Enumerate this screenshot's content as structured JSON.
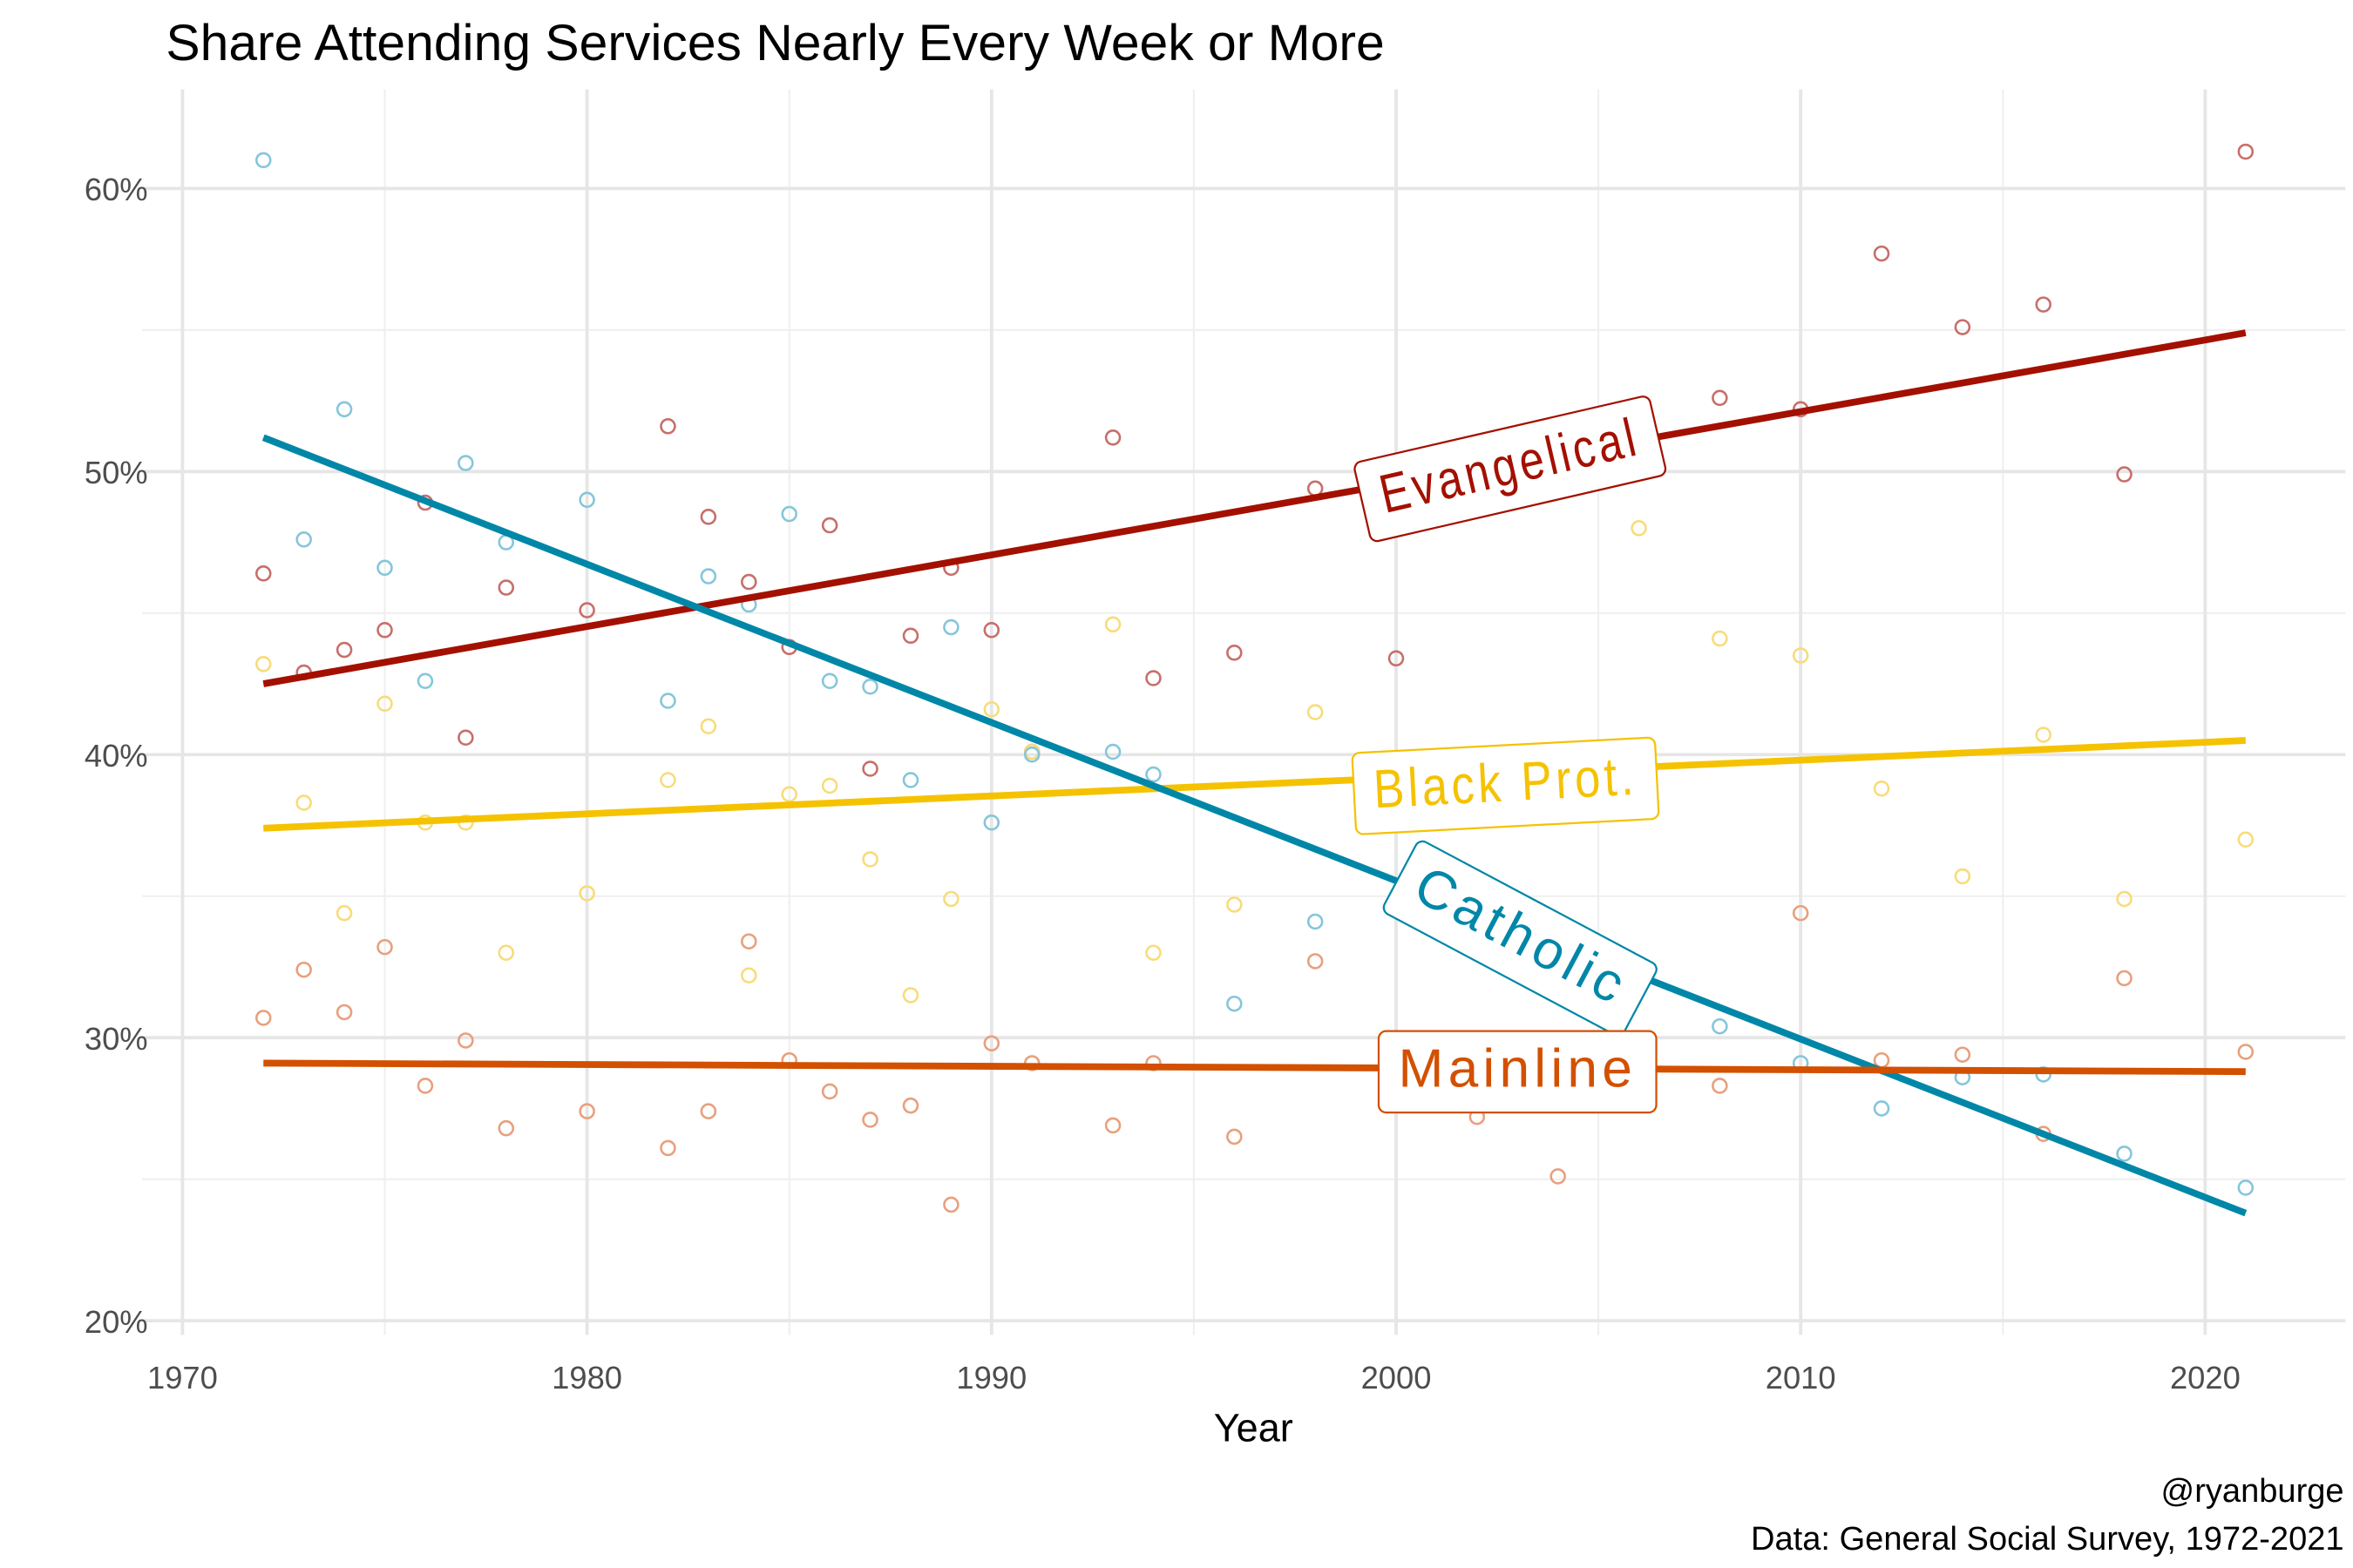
{
  "chart_data": {
    "type": "scatter",
    "title": "Share Attending Services Nearly Every Week or More",
    "xlabel": "Year",
    "ylabel": "",
    "caption_lines": [
      "@ryanburge",
      "Data: General Social Survey, 1972-2021"
    ],
    "xlim": [
      1969,
      2023.5
    ],
    "ylim": [
      19.5,
      63.5
    ],
    "x_ticks": [
      1970,
      1980,
      1990,
      2000,
      2010,
      2020
    ],
    "x_tick_labels": [
      "1970",
      "1980",
      "1990",
      "2000",
      "2010",
      "2020"
    ],
    "y_ticks": [
      20,
      30,
      40,
      50,
      60
    ],
    "y_tick_labels": [
      "20%",
      "30%",
      "40%",
      "50%",
      "60%"
    ],
    "grid": true,
    "legend": "direct labels on lines",
    "series": [
      {
        "name": "Evangelical",
        "color": "#A31000",
        "point_color": "#C76F6A",
        "label_rotation_deg": -13,
        "label_position": {
          "x": 2002.8,
          "y": 50.2
        },
        "trend": {
          "x": [
            1972,
            2021
          ],
          "y": [
            42.5,
            54.9
          ]
        },
        "points": [
          [
            1972,
            46.4
          ],
          [
            1973,
            42.9
          ],
          [
            1974,
            43.7
          ],
          [
            1975,
            44.4
          ],
          [
            1976,
            48.9
          ],
          [
            1977,
            40.6
          ],
          [
            1978,
            45.9
          ],
          [
            1980,
            45.1
          ],
          [
            1982,
            51.6
          ],
          [
            1983,
            48.4
          ],
          [
            1984,
            46.1
          ],
          [
            1985,
            43.8
          ],
          [
            1986,
            48.1
          ],
          [
            1987,
            39.5
          ],
          [
            1988,
            44.2
          ],
          [
            1989,
            46.6
          ],
          [
            1990,
            44.4
          ],
          [
            1991,
            40.1
          ],
          [
            1993,
            51.2
          ],
          [
            1994,
            42.7
          ],
          [
            1996,
            43.6
          ],
          [
            1998,
            49.4
          ],
          [
            2000,
            43.4
          ],
          [
            2008,
            52.6
          ],
          [
            2010,
            52.2
          ],
          [
            2012,
            57.7
          ],
          [
            2014,
            55.1
          ],
          [
            2016,
            55.9
          ],
          [
            2018,
            49.9
          ],
          [
            2021,
            61.3
          ]
        ]
      },
      {
        "name": "Black Prot.",
        "color": "#F5C200",
        "point_color": "#F7DC7A",
        "label_rotation_deg": -3,
        "label_position": {
          "x": 2002.7,
          "y": 39.0
        },
        "trend": {
          "x": [
            1972,
            2021
          ],
          "y": [
            37.4,
            40.5
          ]
        },
        "points": [
          [
            1972,
            43.2
          ],
          [
            1973,
            38.3
          ],
          [
            1974,
            34.4
          ],
          [
            1975,
            41.8
          ],
          [
            1976,
            37.6
          ],
          [
            1977,
            37.6
          ],
          [
            1978,
            33.0
          ],
          [
            1980,
            35.1
          ],
          [
            1982,
            39.1
          ],
          [
            1983,
            41.0
          ],
          [
            1984,
            32.2
          ],
          [
            1985,
            38.6
          ],
          [
            1986,
            38.9
          ],
          [
            1987,
            36.3
          ],
          [
            1988,
            31.5
          ],
          [
            1989,
            34.9
          ],
          [
            1990,
            41.6
          ],
          [
            1991,
            40.1
          ],
          [
            1993,
            44.6
          ],
          [
            1994,
            33.0
          ],
          [
            1996,
            34.7
          ],
          [
            1998,
            41.5
          ],
          [
            2006,
            48.0
          ],
          [
            2008,
            44.1
          ],
          [
            2010,
            43.5
          ],
          [
            2012,
            38.8
          ],
          [
            2014,
            35.7
          ],
          [
            2016,
            40.7
          ],
          [
            2018,
            34.9
          ],
          [
            2021,
            37.0
          ]
        ]
      },
      {
        "name": "Catholic",
        "color": "#0087A8",
        "point_color": "#85C6DB",
        "label_rotation_deg": 28,
        "label_position": {
          "x": 2003.1,
          "y": 33.6
        },
        "trend": {
          "x": [
            1972,
            2021
          ],
          "y": [
            51.2,
            23.8
          ]
        },
        "points": [
          [
            1972,
            61.0
          ],
          [
            1973,
            47.6
          ],
          [
            1974,
            52.2
          ],
          [
            1975,
            46.6
          ],
          [
            1976,
            42.6
          ],
          [
            1977,
            50.3
          ],
          [
            1978,
            47.5
          ],
          [
            1980,
            49.0
          ],
          [
            1982,
            41.9
          ],
          [
            1983,
            46.3
          ],
          [
            1984,
            45.3
          ],
          [
            1985,
            48.5
          ],
          [
            1986,
            42.6
          ],
          [
            1987,
            42.4
          ],
          [
            1988,
            39.1
          ],
          [
            1989,
            44.5
          ],
          [
            1990,
            37.6
          ],
          [
            1991,
            40.0
          ],
          [
            1993,
            40.1
          ],
          [
            1994,
            39.3
          ],
          [
            1996,
            31.2
          ],
          [
            1998,
            34.1
          ],
          [
            2000,
            34.8
          ],
          [
            2006,
            32.0
          ],
          [
            2008,
            30.4
          ],
          [
            2010,
            29.1
          ],
          [
            2012,
            27.5
          ],
          [
            2014,
            28.6
          ],
          [
            2016,
            28.7
          ],
          [
            2018,
            25.9
          ],
          [
            2021,
            24.7
          ]
        ]
      },
      {
        "name": "Mainline",
        "color": "#D35000",
        "point_color": "#E8A07D",
        "label_rotation_deg": 0,
        "label_position": {
          "x": 2003.0,
          "y": 28.9
        },
        "trend": {
          "x": [
            1972,
            2021
          ],
          "y": [
            29.1,
            28.8
          ]
        },
        "points": [
          [
            1972,
            30.7
          ],
          [
            1973,
            32.4
          ],
          [
            1974,
            30.9
          ],
          [
            1975,
            33.2
          ],
          [
            1976,
            28.3
          ],
          [
            1977,
            29.9
          ],
          [
            1978,
            26.8
          ],
          [
            1980,
            27.4
          ],
          [
            1982,
            26.1
          ],
          [
            1983,
            27.4
          ],
          [
            1984,
            33.4
          ],
          [
            1985,
            29.2
          ],
          [
            1986,
            28.1
          ],
          [
            1987,
            27.1
          ],
          [
            1988,
            27.6
          ],
          [
            1989,
            24.1
          ],
          [
            1990,
            29.8
          ],
          [
            1991,
            29.1
          ],
          [
            1993,
            26.9
          ],
          [
            1994,
            29.1
          ],
          [
            1996,
            26.5
          ],
          [
            1998,
            32.7
          ],
          [
            2002,
            27.2
          ],
          [
            2004,
            25.1
          ],
          [
            2008,
            28.3
          ],
          [
            2010,
            34.4
          ],
          [
            2012,
            29.2
          ],
          [
            2014,
            29.4
          ],
          [
            2016,
            26.6
          ],
          [
            2018,
            32.1
          ],
          [
            2021,
            29.5
          ]
        ]
      }
    ]
  }
}
